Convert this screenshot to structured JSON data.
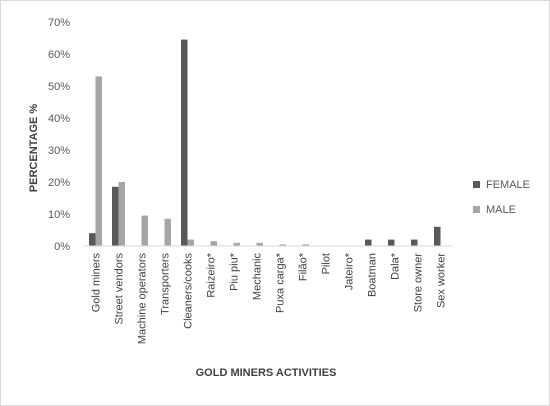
{
  "chart_data": {
    "type": "bar",
    "title": "",
    "xlabel": "GOLD MINERS ACTIVITIES",
    "ylabel": "PERCENTAGE %",
    "ylim": [
      0,
      70
    ],
    "yticks": [
      "0%",
      "10%",
      "20%",
      "30%",
      "40%",
      "50%",
      "60%",
      "70%"
    ],
    "ytick_values": [
      0,
      10,
      20,
      30,
      40,
      50,
      60,
      70
    ],
    "grid": false,
    "legend_position": "right",
    "categories": [
      "Gold miners",
      "Street vendors",
      "Machine operators",
      "Transporters",
      "Cleaners/cooks",
      "Raizeiro*",
      "Piu piu*",
      "Mechanic",
      "Puxa carga*",
      "Filão*",
      "Pilot",
      "Jateiro*",
      "Boatman",
      "Dala*",
      "Store owner",
      "Sex worker"
    ],
    "series": [
      {
        "name": "FEMALE",
        "color": "#595959",
        "values": [
          4,
          18.5,
          0,
          0,
          64.5,
          0,
          0,
          0,
          0,
          0,
          0,
          0,
          2,
          2,
          2,
          6
        ]
      },
      {
        "name": "MALE",
        "color": "#a6a6a6",
        "values": [
          53,
          20,
          9.5,
          8.5,
          2,
          1.5,
          1,
          1,
          0.5,
          0.5,
          0,
          0,
          0,
          0,
          0,
          0
        ]
      }
    ]
  }
}
